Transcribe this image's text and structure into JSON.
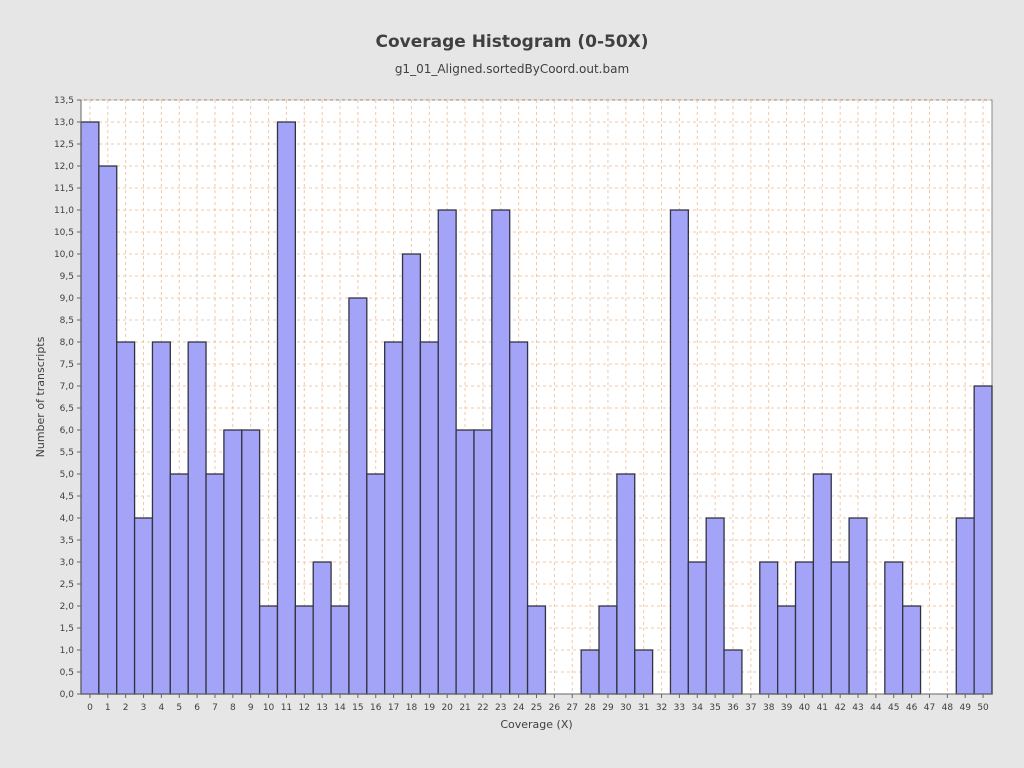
{
  "chart_data": {
    "type": "bar",
    "title": "Coverage Histogram (0-50X)",
    "subtitle": "g1_01_Aligned.sortedByCoord.out.bam",
    "xlabel": "Coverage (X)",
    "ylabel": "Number of transcripts",
    "categories": [
      "0",
      "1",
      "2",
      "3",
      "4",
      "5",
      "6",
      "7",
      "8",
      "9",
      "10",
      "11",
      "12",
      "13",
      "14",
      "15",
      "16",
      "17",
      "18",
      "19",
      "20",
      "21",
      "22",
      "23",
      "24",
      "25",
      "26",
      "27",
      "28",
      "29",
      "30",
      "31",
      "32",
      "33",
      "34",
      "35",
      "36",
      "37",
      "38",
      "39",
      "40",
      "41",
      "42",
      "43",
      "44",
      "45",
      "46",
      "47",
      "48",
      "49",
      "50"
    ],
    "values": [
      13,
      12,
      8,
      4,
      8,
      5,
      8,
      5,
      6,
      6,
      2,
      13,
      2,
      3,
      2,
      9,
      5,
      8,
      10,
      8,
      11,
      6,
      6,
      11,
      8,
      2,
      0,
      0,
      1,
      2,
      5,
      1,
      0,
      11,
      3,
      4,
      1,
      0,
      3,
      2,
      3,
      5,
      3,
      4,
      0,
      3,
      2,
      0,
      0,
      4,
      7
    ],
    "ylim": [
      0,
      13.5
    ],
    "ytick_step": 0.5,
    "yticks": [
      "0,0",
      "0,5",
      "1,0",
      "1,5",
      "2,0",
      "2,5",
      "3,0",
      "3,5",
      "4,0",
      "4,5",
      "5,0",
      "5,5",
      "6,0",
      "6,5",
      "7,0",
      "7,5",
      "8,0",
      "8,5",
      "9,0",
      "9,5",
      "10,0",
      "10,5",
      "11,0",
      "11,5",
      "12,0",
      "12,5",
      "13,0",
      "13,5"
    ],
    "grid": true,
    "colors": {
      "bar_fill": "#a3a3f7",
      "bar_stroke": "#333340",
      "grid": "#f0c8a8",
      "plot_bg": "#ffffff",
      "page_bg": "#e6e6e6"
    }
  }
}
